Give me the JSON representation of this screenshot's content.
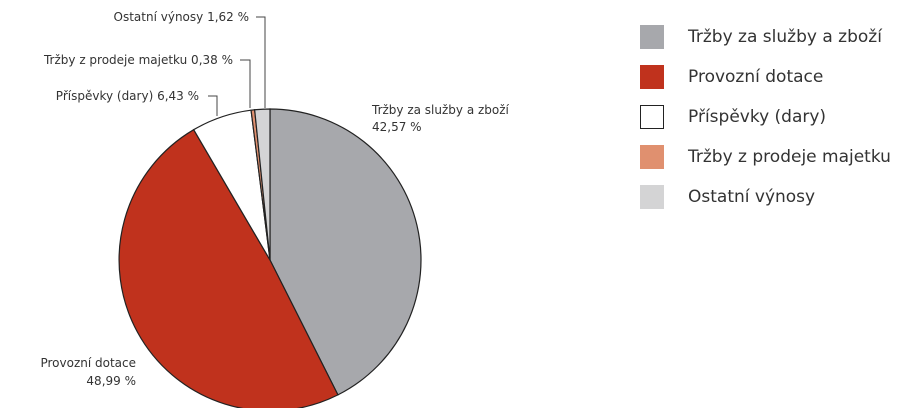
{
  "chart_data": {
    "type": "pie",
    "slices": [
      {
        "name": "Tržby za služby a zboží",
        "value": 42.57,
        "color": "#a7a8ac",
        "label_line1": "Tržby za služby a zboží",
        "label_line2": "42,57 %"
      },
      {
        "name": "Provozní dotace",
        "value": 48.99,
        "color": "#c0321d",
        "label_line1": "Provozní dotace",
        "label_line2": "48,99 %"
      },
      {
        "name": "Příspěvky (dary)",
        "value": 6.43,
        "color": "#ffffff",
        "label_line1": "Příspěvky (dary) 6,43 %"
      },
      {
        "name": "Tržby z prodeje majetku",
        "value": 0.38,
        "color": "#e0906f",
        "label_line1": "Tržby z prodeje majetku 0,38 %"
      },
      {
        "name": "Ostatní výnosy",
        "value": 1.62,
        "color": "#d4d4d5",
        "label_line1": "Ostatní výnosy 1,62 %"
      }
    ],
    "legend": {
      "placement": "right",
      "items": [
        {
          "label": "Tržby za služby a zboží",
          "color": "#a7a8ac"
        },
        {
          "label": "Provozní dotace",
          "color": "#c0321d"
        },
        {
          "label": "Příspěvky (dary)",
          "color": "#ffffff"
        },
        {
          "label": "Tržby z prodeje majetku",
          "color": "#e0906f"
        },
        {
          "label": "Ostatní výnosy",
          "color": "#d4d4d5"
        }
      ]
    }
  }
}
